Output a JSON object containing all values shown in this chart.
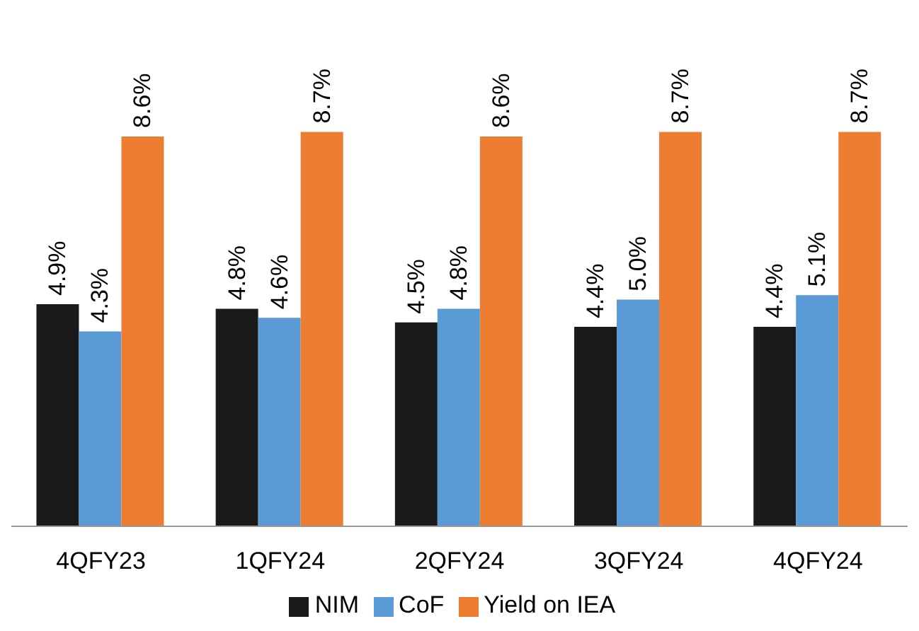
{
  "chart_data": {
    "type": "bar",
    "categories": [
      "4QFY23",
      "1QFY24",
      "2QFY24",
      "3QFY24",
      "4QFY24"
    ],
    "series": [
      {
        "name": "NIM",
        "color": "#1a1a1a",
        "values": [
          4.9,
          4.8,
          4.5,
          4.4,
          4.4
        ],
        "value_labels": [
          "4.9%",
          "4.8%",
          "4.5%",
          "4.4%",
          "4.4%"
        ]
      },
      {
        "name": "CoF",
        "color": "#5b9bd5",
        "values": [
          4.3,
          4.6,
          4.8,
          5.0,
          5.1
        ],
        "value_labels": [
          "4.3%",
          "4.6%",
          "4.8%",
          "5.0%",
          "5.1%"
        ]
      },
      {
        "name": "Yield on IEA",
        "color": "#ed7d31",
        "values": [
          8.6,
          8.7,
          8.6,
          8.7,
          8.7
        ],
        "value_labels": [
          "8.6%",
          "8.7%",
          "8.6%",
          "8.7%",
          "8.7%"
        ]
      }
    ],
    "legend": "bottom",
    "grid": false
  }
}
